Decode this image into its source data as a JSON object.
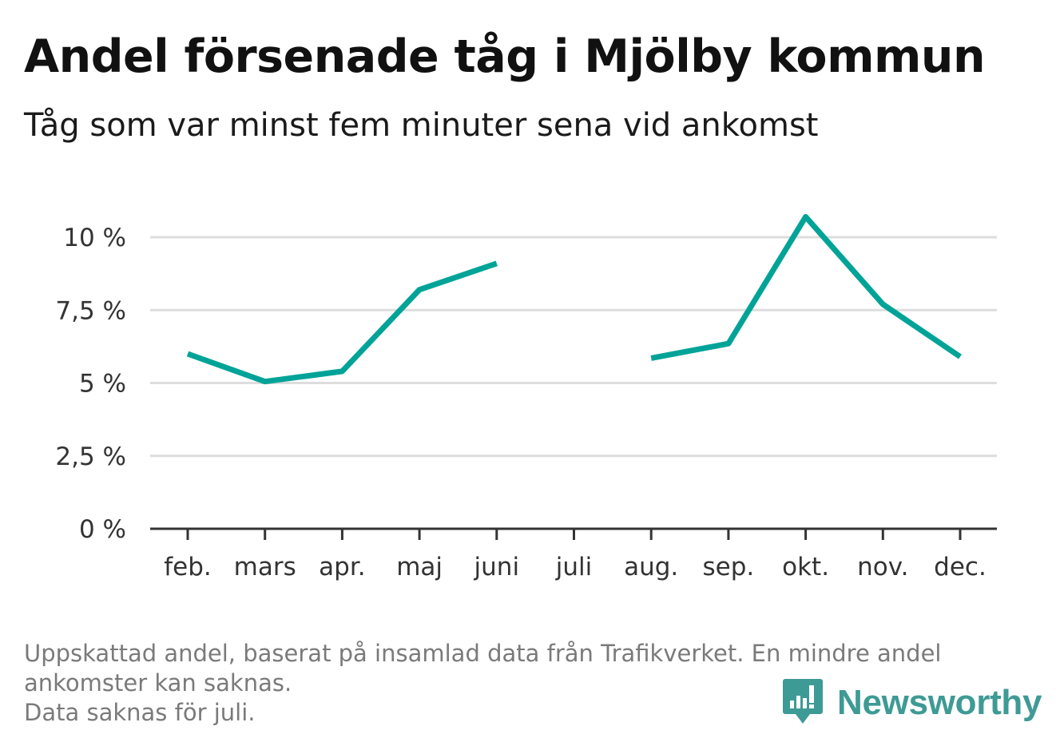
{
  "title": "Andel försenade tåg i Mjölby kommun",
  "subtitle": "Tåg som var minst fem minuter sena vid ankomst",
  "footnote": {
    "line1": "Uppskattad andel, baserat på insamlad data från Trafikverket. En mindre andel",
    "line2": "ankomster kan saknas.",
    "line3": "Data saknas för juli."
  },
  "brand": {
    "name": "Newsworthy",
    "icon": "newsworthy-logo-icon"
  },
  "colors": {
    "line": "#00a398",
    "grid": "#dddddd",
    "axis": "#333333",
    "brand": "#3e9a95"
  },
  "chart_data": {
    "type": "line",
    "title": "Andel försenade tåg i Mjölby kommun",
    "subtitle": "Tåg som var minst fem minuter sena vid ankomst",
    "xlabel": "",
    "ylabel": "",
    "categories": [
      "feb.",
      "mars",
      "apr.",
      "maj",
      "juni",
      "juli",
      "aug.",
      "sep.",
      "okt.",
      "nov.",
      "dec."
    ],
    "series": [
      {
        "values": [
          6.0,
          5.05,
          5.4,
          8.2,
          9.1,
          null,
          5.85,
          6.35,
          10.7,
          7.7,
          5.9
        ]
      }
    ],
    "yticks": [
      0,
      2.5,
      5,
      7.5,
      10
    ],
    "ytick_labels": [
      "0 %",
      "2,5 %",
      "5 %",
      "7,5 %",
      "10 %"
    ],
    "ylim": [
      0,
      10.8
    ],
    "grid": true,
    "legend": "none"
  }
}
